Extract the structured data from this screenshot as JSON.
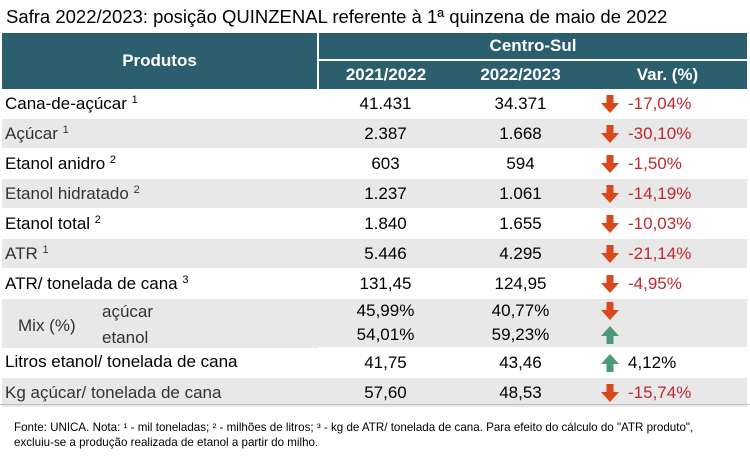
{
  "title": "Safra 2022/2023: posição QUINZENAL referente à 1ª quinzena de maio de 2022",
  "header": {
    "produtos": "Produtos",
    "region": "Centro-Sul",
    "col1": "2021/2022",
    "col2": "2022/2023",
    "col3": "Var. (%)"
  },
  "rows": [
    {
      "label": "Cana-de-açúcar",
      "sup": "1",
      "v1": "41.431",
      "v2": "34.371",
      "var": "-17,04%",
      "dir": "down"
    },
    {
      "label": "Açúcar",
      "sup": "1",
      "v1": "2.387",
      "v2": "1.668",
      "var": "-30,10%",
      "dir": "down"
    },
    {
      "label": "Etanol anidro",
      "sup": "2",
      "v1": "603",
      "v2": "594",
      "var": "-1,50%",
      "dir": "down"
    },
    {
      "label": "Etanol hidratado",
      "sup": "2",
      "v1": "1.237",
      "v2": "1.061",
      "var": "-14,19%",
      "dir": "down"
    },
    {
      "label": "Etanol total",
      "sup": "2",
      "v1": "1.840",
      "v2": "1.655",
      "var": "-10,03%",
      "dir": "down"
    },
    {
      "label": "ATR",
      "sup": "1",
      "v1": "5.446",
      "v2": "4.295",
      "var": "-21,14%",
      "dir": "down"
    },
    {
      "label": "ATR/ tonelada de cana",
      "sup": "3",
      "v1": "131,45",
      "v2": "124,95",
      "var": "-4,95%",
      "dir": "down"
    }
  ],
  "mix": {
    "label": "Mix (%)",
    "acucar": {
      "label": "açúcar",
      "v1": "45,99%",
      "v2": "40,77%",
      "dir": "down"
    },
    "etanol": {
      "label": "etanol",
      "v1": "54,01%",
      "v2": "59,23%",
      "dir": "up"
    }
  },
  "tail": [
    {
      "label": "Litros etanol/ tonelada de cana",
      "v1": "41,75",
      "v2": "43,46",
      "var": "4,12%",
      "dir": "up"
    },
    {
      "label": "Kg açúcar/ tonelada de cana",
      "v1": "57,60",
      "v2": "48,53",
      "var": "-15,74%",
      "dir": "down"
    }
  ],
  "footnote": "Fonte: UNICA. Nota: ¹ - mil toneladas; ² - milhões de litros; ³ - kg de ATR/ tonelada de cana. Para efeito do cálculo do \"ATR produto\", excluiu-se a produção realizada de etanol a partir do milho.",
  "colors": {
    "header_bg": "#2b5f6e",
    "down_arrow": "#d9481a",
    "up_arrow": "#4a9b78",
    "negative_text": "#c0282d"
  },
  "icons": {
    "down": "arrow-down-icon",
    "up": "arrow-up-icon"
  }
}
